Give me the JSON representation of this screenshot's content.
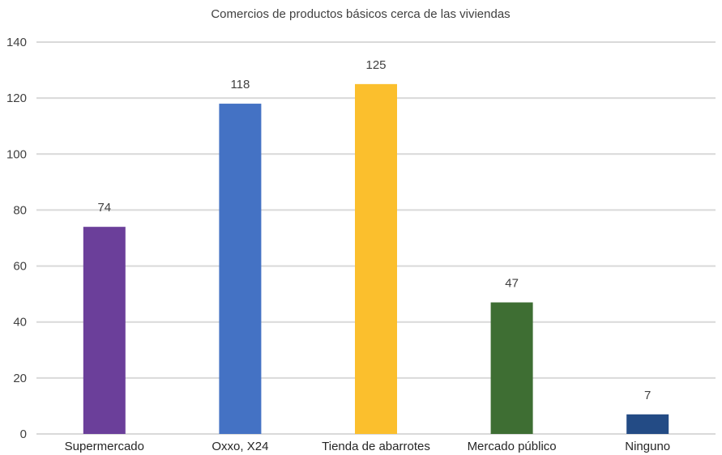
{
  "chart_data": {
    "type": "bar",
    "title": "Comercios de productos básicos cerca de las viviendas",
    "categories": [
      "Supermercado",
      "Oxxo, X24",
      "Tienda de abarrotes",
      "Mercado público",
      "Ninguno"
    ],
    "values": [
      74,
      118,
      125,
      47,
      7
    ],
    "data_labels": [
      "74",
      "118",
      "125",
      "47",
      "7"
    ],
    "colors": [
      "#6b3f9a",
      "#4472c4",
      "#fbbf2d",
      "#3e6e33",
      "#234b85"
    ],
    "ylim": [
      0,
      140
    ],
    "yticks": [
      0,
      20,
      40,
      60,
      80,
      100,
      120,
      140
    ],
    "ytick_labels": [
      "0",
      "20",
      "40",
      "60",
      "80",
      "100",
      "120",
      "140"
    ],
    "grid": true,
    "legend": "none"
  }
}
